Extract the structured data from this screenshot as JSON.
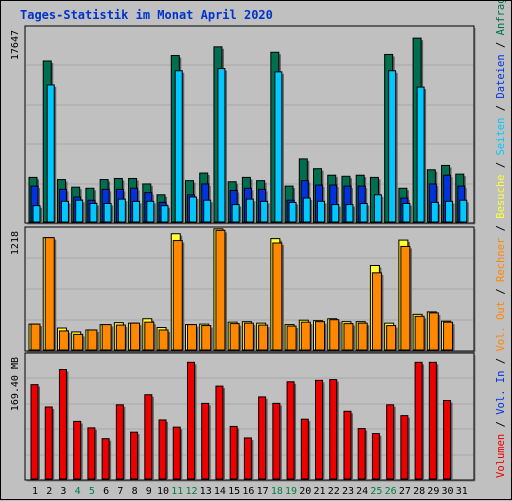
{
  "title": "Tages-Statistik im Monat April 2020",
  "colors": {
    "anfragen": "#006f50",
    "dateien": "#0033dd",
    "seiten": "#00c8ff",
    "besuche": "#ffff33",
    "rechner": "#ff8800",
    "volumen": "#ee0000",
    "weekend_label": "#008040",
    "day_label": "#000000",
    "grid": "#a8a8a8",
    "panel_bg": "#c0c0c0"
  },
  "chart_data": [
    {
      "type": "bar",
      "panel": "hits",
      "max_label": "17647",
      "ylim": [
        0,
        17647
      ],
      "categories": [
        "1",
        "2",
        "3",
        "4",
        "5",
        "6",
        "7",
        "8",
        "9",
        "10",
        "11",
        "12",
        "13",
        "14",
        "15",
        "16",
        "17",
        "18",
        "19",
        "20",
        "21",
        "22",
        "23",
        "24",
        "25",
        "26",
        "27",
        "28",
        "29",
        "30",
        "31"
      ],
      "weekend_days": [
        4,
        5,
        11,
        12,
        18,
        19,
        25,
        26
      ],
      "series": [
        {
          "name": "Anfragen",
          "values": [
            4100,
            14800,
            3900,
            3200,
            3100,
            3900,
            4000,
            4000,
            3500,
            2500,
            15300,
            3800,
            4500,
            16100,
            3700,
            4100,
            3800,
            15600,
            3300,
            5800,
            4900,
            4300,
            4200,
            4300,
            4100,
            15400,
            3100,
            16900,
            4800,
            5200,
            4400
          ]
        },
        {
          "name": "Dateien",
          "values": [
            3300,
            0,
            3000,
            2300,
            2000,
            3000,
            3000,
            3100,
            2700,
            1800,
            0,
            2500,
            3500,
            0,
            2900,
            3100,
            3000,
            0,
            2000,
            3800,
            3400,
            3400,
            3300,
            3300,
            0,
            0,
            2200,
            0,
            3500,
            4300,
            3300
          ]
        },
        {
          "name": "Seiten",
          "values": [
            1500,
            12600,
            1900,
            2000,
            1700,
            1700,
            2100,
            1900,
            1900,
            1500,
            13900,
            2300,
            2000,
            14100,
            1600,
            2100,
            1900,
            13800,
            1800,
            2200,
            1900,
            1600,
            1600,
            1700,
            2500,
            13900,
            1700,
            12400,
            1800,
            1900,
            2000
          ]
        }
      ]
    },
    {
      "type": "bar",
      "panel": "visits",
      "max_label": "1218",
      "ylim": [
        0,
        1218
      ],
      "categories": [
        "1",
        "2",
        "3",
        "4",
        "5",
        "6",
        "7",
        "8",
        "9",
        "10",
        "11",
        "12",
        "13",
        "14",
        "15",
        "16",
        "17",
        "18",
        "19",
        "20",
        "21",
        "22",
        "23",
        "24",
        "25",
        "26",
        "27",
        "28",
        "29",
        "30",
        "31"
      ],
      "series": [
        {
          "name": "Besuche",
          "values": [
            265,
            1150,
            225,
            185,
            205,
            260,
            280,
            275,
            320,
            230,
            1190,
            260,
            265,
            1240,
            285,
            290,
            275,
            1140,
            260,
            305,
            300,
            320,
            290,
            290,
            865,
            275,
            1125,
            365,
            390,
            295,
            0
          ]
        },
        {
          "name": "Rechner",
          "values": [
            265,
            1150,
            195,
            160,
            205,
            260,
            255,
            275,
            285,
            205,
            1120,
            260,
            250,
            1225,
            270,
            275,
            255,
            1095,
            245,
            285,
            290,
            310,
            270,
            275,
            790,
            250,
            1060,
            345,
            380,
            285,
            0
          ]
        }
      ]
    },
    {
      "type": "bar",
      "panel": "volume",
      "max_label": "169.40 MB",
      "ylim": [
        0,
        169.4
      ],
      "categories": [
        "1",
        "2",
        "3",
        "4",
        "5",
        "6",
        "7",
        "8",
        "9",
        "10",
        "11",
        "12",
        "13",
        "14",
        "15",
        "16",
        "17",
        "18",
        "19",
        "20",
        "21",
        "22",
        "23",
        "24",
        "25",
        "26",
        "27",
        "28",
        "29",
        "30",
        "31"
      ],
      "series": [
        {
          "name": "Volumen",
          "values": [
            131,
            100,
            152,
            80,
            71,
            56,
            103,
            65,
            117,
            82,
            72,
            162,
            105,
            129,
            73,
            57,
            114,
            105,
            135,
            83,
            137,
            138,
            94,
            70,
            63,
            103,
            88,
            162,
            162,
            109,
            0
          ]
        }
      ]
    }
  ],
  "legend_segments": [
    {
      "text": "Volumen",
      "color": "#ee0000"
    },
    {
      "text": " / ",
      "color": "#000000"
    },
    {
      "text": "Vol. In",
      "color": "#0033dd"
    },
    {
      "text": " / ",
      "color": "#000000"
    },
    {
      "text": "Vol. Out",
      "color": "#ff8800"
    },
    {
      "text": " / ",
      "color": "#000000"
    },
    {
      "text": "Rechner",
      "color": "#ff8800"
    },
    {
      "text": " / ",
      "color": "#000000"
    },
    {
      "text": "Besuche",
      "color": "#ffff33"
    },
    {
      "text": " / ",
      "color": "#000000"
    },
    {
      "text": "Seiten",
      "color": "#00c8ff"
    },
    {
      "text": " / ",
      "color": "#000000"
    },
    {
      "text": "Dateien",
      "color": "#0033dd"
    },
    {
      "text": " / ",
      "color": "#000000"
    },
    {
      "text": "Anfragen",
      "color": "#006f50"
    }
  ]
}
